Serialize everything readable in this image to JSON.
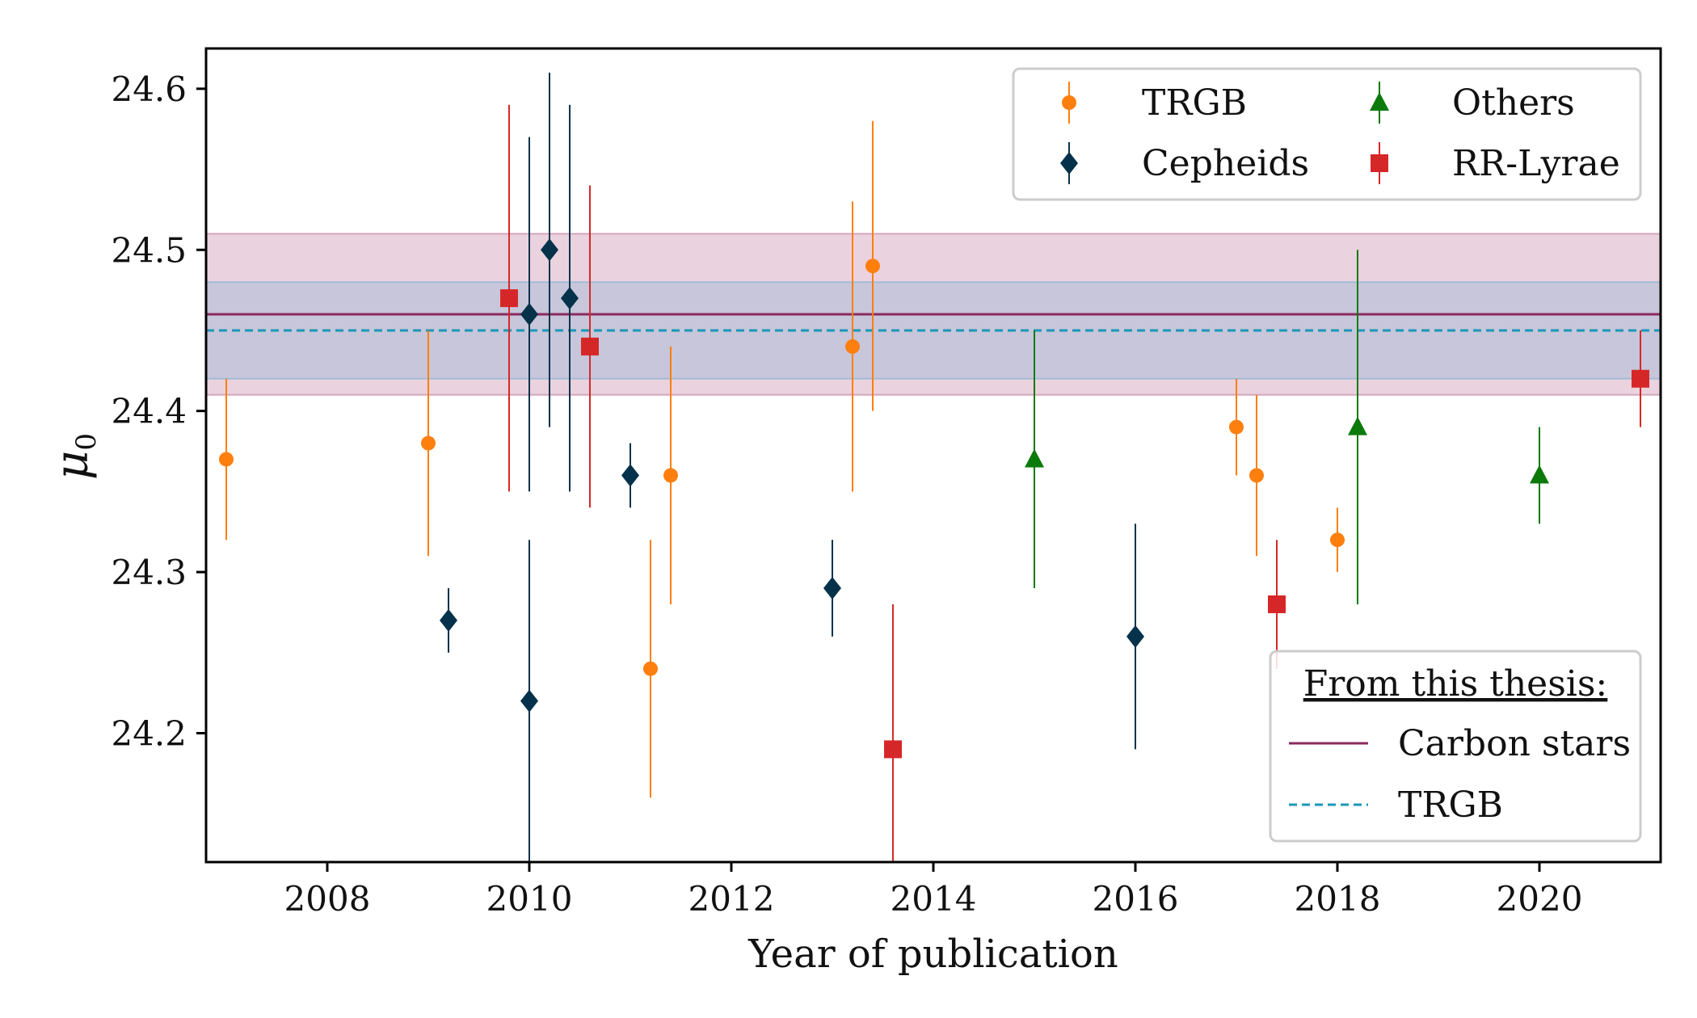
{
  "chart_data": {
    "type": "scatter",
    "xlabel": "Year of publication",
    "ylabel_main": "μ",
    "ylabel_sub": "0",
    "xlim": [
      2006.8,
      2021.2
    ],
    "ylim": [
      24.12,
      24.625
    ],
    "xticks": [
      2008,
      2010,
      2012,
      2014,
      2016,
      2018,
      2020
    ],
    "yticks": [
      24.2,
      24.3,
      24.4,
      24.5,
      24.6
    ],
    "xtick_labels": [
      "2008",
      "2010",
      "2012",
      "2014",
      "2016",
      "2018",
      "2020"
    ],
    "ytick_labels": [
      "24.2",
      "24.3",
      "24.4",
      "24.5",
      "24.6"
    ],
    "grid": false,
    "legend_placement": "top-right",
    "series": [
      {
        "name": "TRGB",
        "marker": "circle",
        "color": "#ff7f0e",
        "points": [
          {
            "x": 2007.0,
            "y": 24.37,
            "lo": 24.32,
            "hi": 24.42
          },
          {
            "x": 2009.0,
            "y": 24.38,
            "lo": 24.31,
            "hi": 24.45
          },
          {
            "x": 2011.2,
            "y": 24.24,
            "lo": 24.16,
            "hi": 24.32
          },
          {
            "x": 2011.4,
            "y": 24.36,
            "lo": 24.28,
            "hi": 24.44
          },
          {
            "x": 2013.2,
            "y": 24.44,
            "lo": 24.35,
            "hi": 24.53
          },
          {
            "x": 2013.4,
            "y": 24.49,
            "lo": 24.4,
            "hi": 24.58
          },
          {
            "x": 2017.0,
            "y": 24.39,
            "lo": 24.36,
            "hi": 24.42
          },
          {
            "x": 2017.2,
            "y": 24.36,
            "lo": 24.31,
            "hi": 24.41
          },
          {
            "x": 2018.0,
            "y": 24.32,
            "lo": 24.3,
            "hi": 24.34
          }
        ]
      },
      {
        "name": "Cepheids",
        "marker": "diamond",
        "color": "#05324a",
        "points": [
          {
            "x": 2009.2,
            "y": 24.27,
            "lo": 24.25,
            "hi": 24.29
          },
          {
            "x": 2010.0,
            "y": 24.22,
            "lo": 24.1,
            "hi": 24.32
          },
          {
            "x": 2010.0,
            "y": 24.46,
            "lo": 24.35,
            "hi": 24.57
          },
          {
            "x": 2010.2,
            "y": 24.5,
            "lo": 24.39,
            "hi": 24.61
          },
          {
            "x": 2010.4,
            "y": 24.47,
            "lo": 24.35,
            "hi": 24.59
          },
          {
            "x": 2011.0,
            "y": 24.36,
            "lo": 24.34,
            "hi": 24.38
          },
          {
            "x": 2013.0,
            "y": 24.29,
            "lo": 24.26,
            "hi": 24.32
          },
          {
            "x": 2016.0,
            "y": 24.26,
            "lo": 24.19,
            "hi": 24.33
          }
        ]
      },
      {
        "name": "Others",
        "marker": "triangle",
        "color": "#0a7a0a",
        "points": [
          {
            "x": 2015.0,
            "y": 24.37,
            "lo": 24.29,
            "hi": 24.45
          },
          {
            "x": 2018.2,
            "y": 24.39,
            "lo": 24.28,
            "hi": 24.5
          },
          {
            "x": 2020.0,
            "y": 24.36,
            "lo": 24.33,
            "hi": 24.39
          }
        ]
      },
      {
        "name": "RR-Lyrae",
        "marker": "square",
        "color": "#d62728",
        "points": [
          {
            "x": 2009.8,
            "y": 24.47,
            "lo": 24.35,
            "hi": 24.59
          },
          {
            "x": 2010.6,
            "y": 24.44,
            "lo": 24.34,
            "hi": 24.54
          },
          {
            "x": 2013.6,
            "y": 24.19,
            "lo": 24.1,
            "hi": 24.28
          },
          {
            "x": 2017.4,
            "y": 24.28,
            "lo": 24.24,
            "hi": 24.32
          },
          {
            "x": 2021.0,
            "y": 24.42,
            "lo": 24.39,
            "hi": 24.45
          }
        ]
      }
    ],
    "bands": [
      {
        "name": "Carbon stars",
        "value": 24.46,
        "lo": 24.41,
        "hi": 24.51,
        "line_color": "#8b2a5e",
        "fill_color": "#c78aa8",
        "dash": false
      },
      {
        "name": "TRGB",
        "value": 24.45,
        "lo": 24.42,
        "hi": 24.48,
        "line_color": "#1a97b8",
        "fill_color": "#8fb4d4",
        "dash": true
      }
    ],
    "legend2_title": "From this thesis:"
  }
}
